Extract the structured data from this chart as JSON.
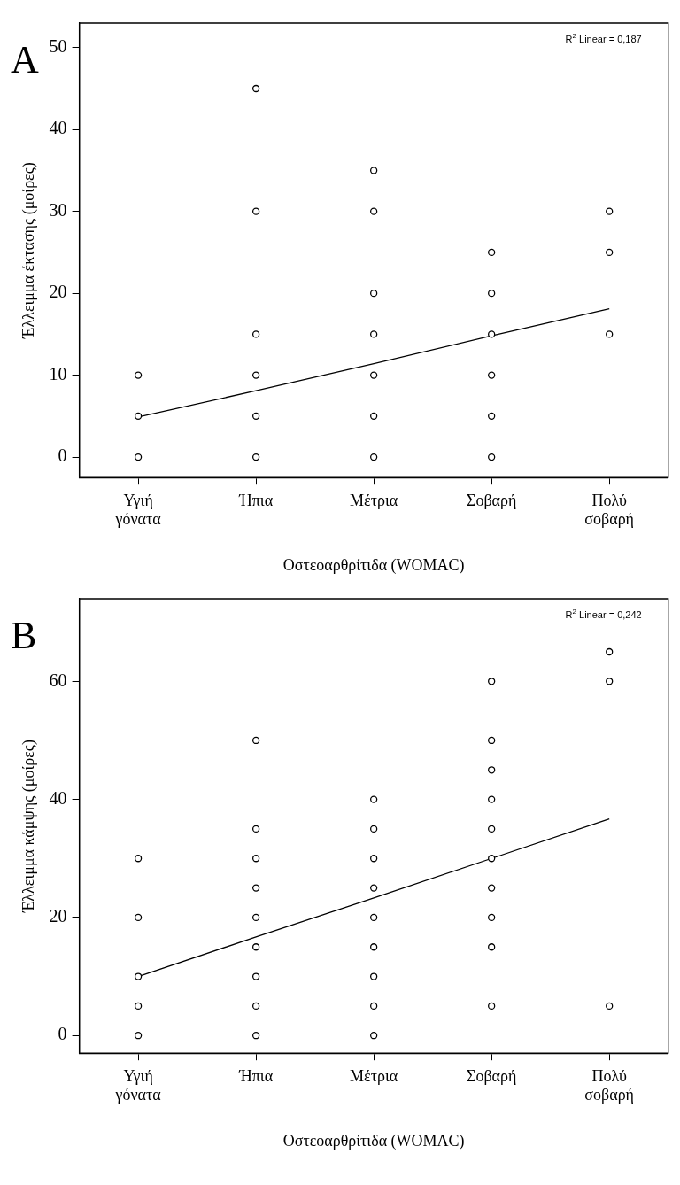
{
  "chart_data": [
    {
      "type": "scatter",
      "title": "A",
      "xlabel": "Οστεοαρθρίτιδα (WOMAC)",
      "ylabel": "Έλλειμμα έκτασης (μοίρες)",
      "categories": [
        "Υγιή γόνατα",
        "Ήπια",
        "Μέτρια",
        "Σοβαρή",
        "Πολύ σοβαρή"
      ],
      "series": [
        {
          "marker": "circle",
          "color": "#000000",
          "x": [
            "Υγιή γόνατα",
            "Υγιή γόνατα",
            "Υγιή γόνατα",
            "Ήπια",
            "Ήπια",
            "Ήπια",
            "Ήπια",
            "Ήπια",
            "Ήπια",
            "Μέτρια",
            "Μέτρια",
            "Μέτρια",
            "Μέτρια",
            "Μέτρια",
            "Μέτρια",
            "Μέτρια",
            "Σοβαρή",
            "Σοβαρή",
            "Σοβαρή",
            "Σοβαρή",
            "Σοβαρή",
            "Σοβαρή",
            "Πολύ σοβαρή",
            "Πολύ σοβαρή",
            "Πολύ σοβαρή"
          ],
          "values": [
            0,
            5,
            10,
            0,
            5,
            10,
            15,
            30,
            45,
            0,
            5,
            10,
            15,
            20,
            30,
            35,
            0,
            5,
            10,
            15,
            20,
            25,
            15,
            25,
            30
          ]
        },
        {
          "type": "line",
          "marker": "none",
          "color": "#000000",
          "values": [
            4.9,
            8.1,
            11.4,
            14.8,
            18.1
          ]
        }
      ],
      "ylim": [
        -2.5,
        53
      ],
      "yticks": [
        0,
        10,
        20,
        30,
        40,
        50
      ],
      "grid": false,
      "annotations": [
        "R$^{2}$ Linear = 0,187"
      ]
    },
    {
      "type": "scatter",
      "title": "B",
      "xlabel": "Οστεοαρθρίτιδα (WOMAC)",
      "ylabel": "Έλλειμμα κάμψης (μοίρες)",
      "categories": [
        "Υγιή γόνατα",
        "Ήπια",
        "Μέτρια",
        "Σοβαρή",
        "Πολύ σοβαρή"
      ],
      "series": [
        {
          "marker": "circle",
          "color": "#000000",
          "x": [
            "Υγιή γόνατα",
            "Υγιή γόνατα",
            "Υγιή γόνατα",
            "Υγιή γόνατα",
            "Υγιή γόνατα",
            "Ήπια",
            "Ήπια",
            "Ήπια",
            "Ήπια",
            "Ήπια",
            "Ήπια",
            "Ήπια",
            "Ήπια",
            "Ήπια",
            "Μέτρια",
            "Μέτρια",
            "Μέτρια",
            "Μέτρια",
            "Μέτρια",
            "Μέτρια",
            "Μέτρια",
            "Μέτρια",
            "Μέτρια",
            "Σοβαρή",
            "Σοβαρή",
            "Σοβαρή",
            "Σοβαρή",
            "Σοβαρή",
            "Σοβαρή",
            "Σοβαρή",
            "Σοβαρή",
            "Σοβαρή",
            "Σοβαρή",
            "Πολύ σοβαρή",
            "Πολύ σοβαρή",
            "Πολύ σοβαρή"
          ],
          "values": [
            0,
            5,
            10,
            20,
            30,
            0,
            5,
            10,
            15,
            20,
            25,
            30,
            35,
            50,
            0,
            5,
            10,
            15,
            20,
            25,
            30,
            35,
            40,
            5,
            15,
            20,
            25,
            30,
            35,
            40,
            45,
            50,
            60,
            5,
            60,
            65
          ]
        },
        {
          "type": "line",
          "marker": "none",
          "color": "#000000",
          "values": [
            10,
            16.7,
            23.3,
            30,
            36.7
          ]
        }
      ],
      "ylim": [
        -3,
        74
      ],
      "yticks": [
        0,
        20,
        40,
        60
      ],
      "grid": false,
      "annotations": [
        "R$^{2}$ Linear = 0,242"
      ]
    }
  ]
}
